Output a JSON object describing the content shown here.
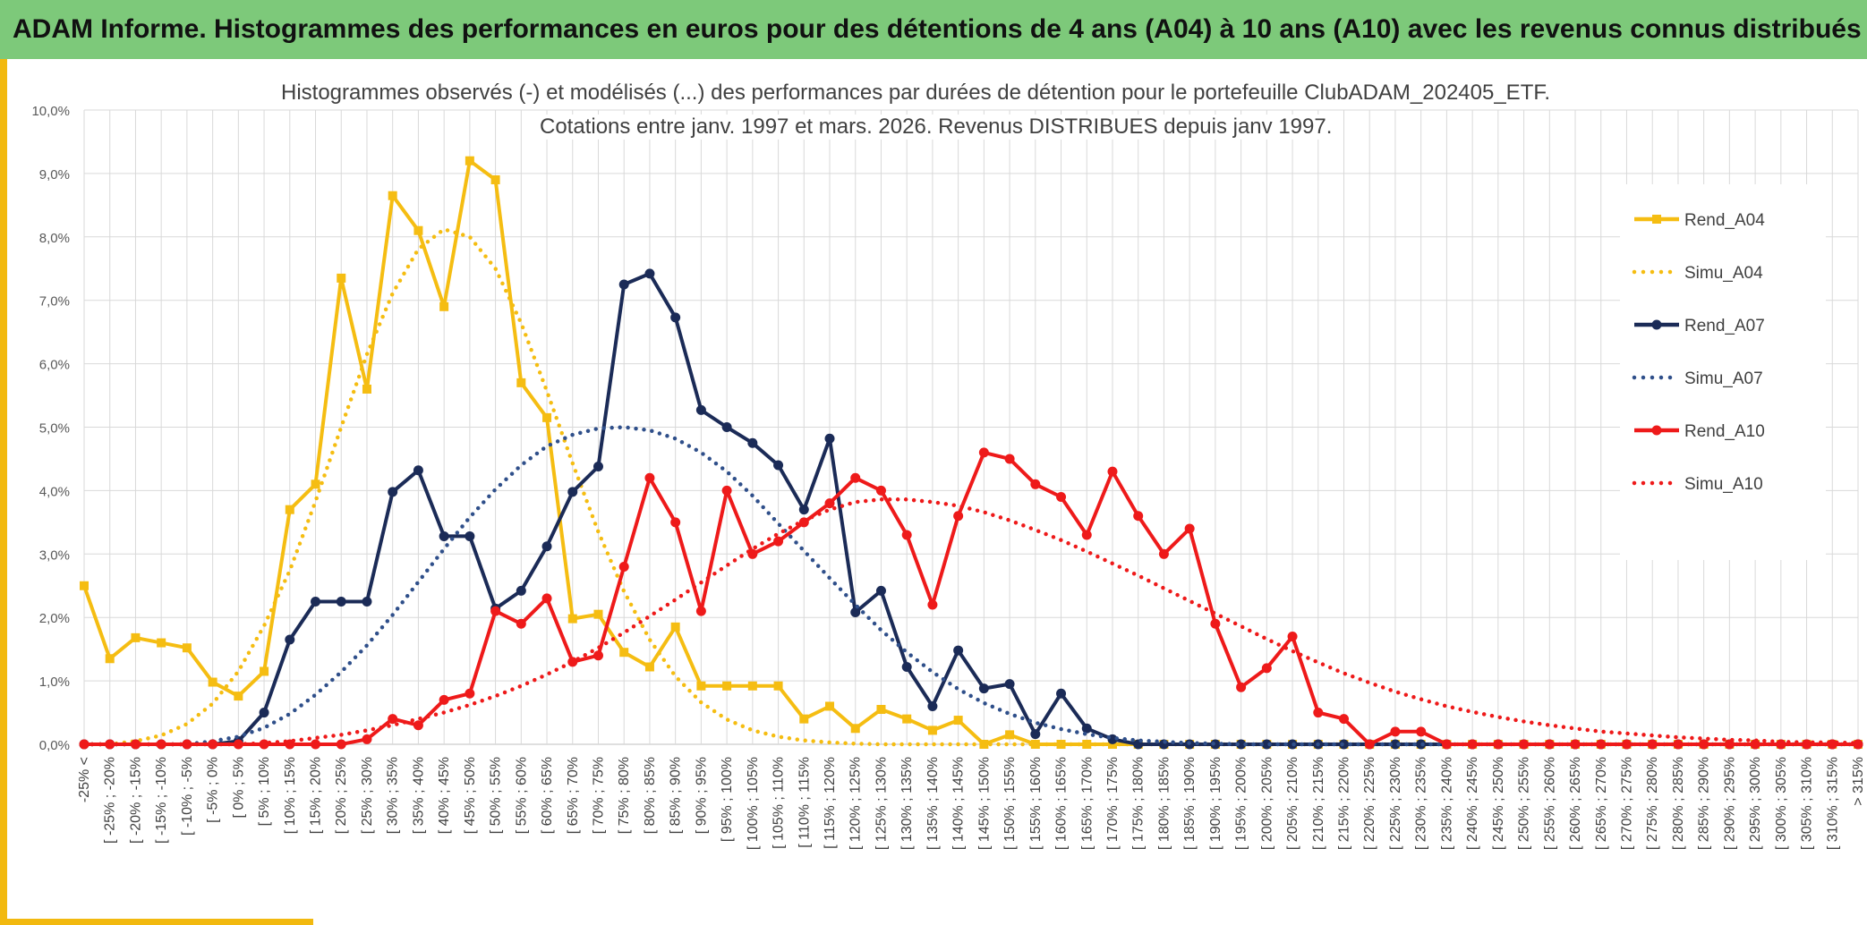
{
  "banner": {
    "title": "ADAM Informe. Histogrammes des performances en euros pour des détentions de 4 ans (A04) à 10 ans (A10) avec les revenus connus distribués"
  },
  "colors": {
    "banner": "#7dc97a",
    "frame": "#f2b90f",
    "a04": "#f5bd12",
    "a07": "#1b2b57",
    "simu07": "#2f4f8a",
    "a10": "#ee1a1a",
    "grid": "#d9d9d9"
  },
  "chart_data": {
    "type": "line",
    "title": "Histogrammes observés (-) et modélisés (...) des performances par durées de détention pour le portefeuille ClubADAM_202405_ETF.",
    "subtitle": "Cotations entre janv. 1997 et mars. 2026. Revenus DISTRIBUES depuis janv 1997.",
    "xlabel": "",
    "ylabel": "",
    "ylim": [
      0,
      10
    ],
    "yticks": [
      "0,0%",
      "1,0%",
      "2,0%",
      "3,0%",
      "4,0%",
      "5,0%",
      "6,0%",
      "7,0%",
      "8,0%",
      "9,0%",
      "10,0%"
    ],
    "grid": true,
    "legend_position": "right",
    "categories": [
      "-25% <",
      "[ -25% ; -20%",
      "[ -20% ; -15%",
      "[ -15% ; -10%",
      "[ -10% ; -5%",
      "[ -5% ; 0%",
      "[ 0% ; 5%",
      "[ 5% ; 10%",
      "[ 10% ; 15%",
      "[ 15% ; 20%",
      "[ 20% ; 25%",
      "[ 25% ; 30%",
      "[ 30% ; 35%",
      "[ 35% ; 40%",
      "[ 40% ; 45%",
      "[ 45% ; 50%",
      "[ 50% ; 55%",
      "[ 55% ; 60%",
      "[ 60% ; 65%",
      "[ 65% ; 70%",
      "[ 70% ; 75%",
      "[ 75% ; 80%",
      "[ 80% ; 85%",
      "[ 85% ; 90%",
      "[ 90% ; 95%",
      "[ 95% ; 100%",
      "[ 100% ; 105%",
      "[ 105% ; 110%",
      "[ 110% ; 115%",
      "[ 115% ; 120%",
      "[ 120% ; 125%",
      "[ 125% ; 130%",
      "[ 130% ; 135%",
      "[ 135% ; 140%",
      "[ 140% ; 145%",
      "[ 145% ; 150%",
      "[ 150% ; 155%",
      "[ 155% ; 160%",
      "[ 160% ; 165%",
      "[ 165% ; 170%",
      "[ 170% ; 175%",
      "[ 175% ; 180%",
      "[ 180% ; 185%",
      "[ 185% ; 190%",
      "[ 190% ; 195%",
      "[ 195% ; 200%",
      "[ 200% ; 205%",
      "[ 205% ; 210%",
      "[ 210% ; 215%",
      "[ 215% ; 220%",
      "[ 220% ; 225%",
      "[ 225% ; 230%",
      "[ 230% ; 235%",
      "[ 235% ; 240%",
      "[ 240% ; 245%",
      "[ 245% ; 250%",
      "[ 250% ; 255%",
      "[ 255% ; 260%",
      "[ 260% ; 265%",
      "[ 265% ; 270%",
      "[ 270% ; 275%",
      "[ 275% ; 280%",
      "[ 280% ; 285%",
      "[ 285% ; 290%",
      "[ 290% ; 295%",
      "[ 295% ; 300%",
      "[ 300% ; 305%",
      "[ 305% ; 310%",
      "[ 310% ; 315%",
      "> 315%"
    ],
    "series": [
      {
        "name": "Rend_A04",
        "style": "solid",
        "marker": "square",
        "color": "#f5bd12",
        "values": [
          2.5,
          1.35,
          1.68,
          1.6,
          1.52,
          0.98,
          0.76,
          1.15,
          3.7,
          4.1,
          7.35,
          5.6,
          8.65,
          8.1,
          6.9,
          9.2,
          8.9,
          5.7,
          5.15,
          1.98,
          2.05,
          1.45,
          1.22,
          1.85,
          0.92,
          0.92,
          0.92,
          0.92,
          0.4,
          0.6,
          0.25,
          0.55,
          0.4,
          0.22,
          0.38,
          0.0,
          0.15,
          0.0,
          0.0,
          0.0,
          0.0,
          0.0,
          0.0,
          0.0,
          0.0,
          0.0,
          0.0,
          0.0,
          0.0,
          0.0,
          0.0,
          0.0,
          0.0,
          0.0,
          0.0,
          0.0,
          0.0,
          0.0,
          0.0,
          0.0,
          0.0,
          0.0,
          0.0,
          0.0,
          0.0,
          0.0,
          0.0,
          0.0,
          0.0,
          0.0
        ]
      },
      {
        "name": "Simu_A04",
        "style": "dotted",
        "marker": "none",
        "color": "#f5bd12",
        "values": [
          0.0,
          0.0,
          0.05,
          0.14,
          0.32,
          0.64,
          1.15,
          1.87,
          2.74,
          3.83,
          5.0,
          6.15,
          7.11,
          7.81,
          8.12,
          8.0,
          7.5,
          6.64,
          5.57,
          4.43,
          3.35,
          2.41,
          1.65,
          1.07,
          0.66,
          0.39,
          0.22,
          0.12,
          0.06,
          0.03,
          0.01,
          0.0,
          0.0,
          0.0,
          0.0,
          0.0,
          0.0,
          0.0,
          0.0,
          0.0,
          0.0,
          0.0,
          0.0,
          0.0,
          0.0,
          0.0,
          0.0,
          0.0,
          0.0,
          0.0,
          0.0,
          0.0,
          0.0,
          0.0,
          0.0,
          0.0,
          0.0,
          0.0,
          0.0,
          0.0,
          0.0,
          0.0,
          0.0,
          0.0,
          0.0,
          0.0,
          0.0,
          0.0,
          0.0,
          0.0
        ]
      },
      {
        "name": "Rend_A07",
        "style": "solid",
        "marker": "circle",
        "color": "#1b2b57",
        "values": [
          0.0,
          0.0,
          0.0,
          0.0,
          0.0,
          0.0,
          0.05,
          0.5,
          1.65,
          2.25,
          2.25,
          2.25,
          3.98,
          4.32,
          3.28,
          3.28,
          2.14,
          2.42,
          3.12,
          3.98,
          4.38,
          7.25,
          7.42,
          6.73,
          5.27,
          5.0,
          4.75,
          4.4,
          3.7,
          4.82,
          2.08,
          2.42,
          1.22,
          0.6,
          1.48,
          0.88,
          0.95,
          0.16,
          0.8,
          0.25,
          0.08,
          0.0,
          0.0,
          0.0,
          0.0,
          0.0,
          0.0,
          0.0,
          0.0,
          0.0,
          0.0,
          0.0,
          0.0,
          0.0,
          0.0,
          0.0,
          0.0,
          0.0,
          0.0,
          0.0,
          0.0,
          0.0,
          0.0,
          0.0,
          0.0,
          0.0,
          0.0,
          0.0,
          0.0,
          0.0
        ]
      },
      {
        "name": "Simu_A07",
        "style": "dotted",
        "marker": "none",
        "color": "#2f4f8a",
        "values": [
          0.0,
          0.0,
          0.0,
          0.0,
          0.0,
          0.05,
          0.12,
          0.26,
          0.48,
          0.78,
          1.14,
          1.56,
          2.04,
          2.56,
          3.08,
          3.58,
          4.02,
          4.4,
          4.7,
          4.88,
          4.98,
          5.0,
          4.95,
          4.82,
          4.6,
          4.3,
          3.92,
          3.48,
          3.05,
          2.62,
          2.2,
          1.8,
          1.45,
          1.14,
          0.87,
          0.65,
          0.48,
          0.34,
          0.24,
          0.16,
          0.1,
          0.06,
          0.04,
          0.02,
          0.01,
          0.0,
          0.0,
          0.0,
          0.0,
          0.0,
          0.0,
          0.0,
          0.0,
          0.0,
          0.0,
          0.0,
          0.0,
          0.0,
          0.0,
          0.0,
          0.0,
          0.0,
          0.0,
          0.0,
          0.0,
          0.0,
          0.0,
          0.0,
          0.0,
          0.0
        ]
      },
      {
        "name": "Rend_A10",
        "style": "solid",
        "marker": "circle",
        "color": "#ee1a1a",
        "values": [
          0.0,
          0.0,
          0.0,
          0.0,
          0.0,
          0.0,
          0.0,
          0.0,
          0.0,
          0.0,
          0.0,
          0.08,
          0.4,
          0.3,
          0.7,
          0.8,
          2.1,
          1.9,
          2.3,
          1.3,
          1.4,
          2.8,
          4.2,
          3.5,
          2.1,
          4.0,
          3.0,
          3.2,
          3.5,
          3.8,
          4.2,
          4.0,
          3.3,
          2.2,
          3.6,
          4.6,
          4.5,
          4.1,
          3.9,
          3.3,
          4.3,
          3.6,
          3.0,
          3.4,
          1.9,
          0.9,
          1.2,
          1.7,
          0.5,
          0.4,
          0.0,
          0.2,
          0.2,
          0.0,
          0.0,
          0.0,
          0.0,
          0.0,
          0.0,
          0.0,
          0.0,
          0.0,
          0.0,
          0.0,
          0.0,
          0.0,
          0.0,
          0.0,
          0.0,
          0.0
        ]
      },
      {
        "name": "Simu_A10",
        "style": "dotted",
        "marker": "none",
        "color": "#ee1a1a",
        "values": [
          0.0,
          0.0,
          0.0,
          0.0,
          0.0,
          0.0,
          0.0,
          0.02,
          0.05,
          0.1,
          0.15,
          0.22,
          0.3,
          0.4,
          0.5,
          0.62,
          0.76,
          0.92,
          1.1,
          1.3,
          1.52,
          1.76,
          2.02,
          2.28,
          2.55,
          2.82,
          3.08,
          3.32,
          3.53,
          3.7,
          3.82,
          3.86,
          3.86,
          3.82,
          3.76,
          3.66,
          3.53,
          3.38,
          3.22,
          3.04,
          2.85,
          2.66,
          2.46,
          2.26,
          2.06,
          1.86,
          1.66,
          1.47,
          1.29,
          1.12,
          0.97,
          0.83,
          0.71,
          0.6,
          0.51,
          0.43,
          0.36,
          0.3,
          0.25,
          0.2,
          0.17,
          0.14,
          0.11,
          0.09,
          0.07,
          0.06,
          0.04,
          0.03,
          0.03,
          0.02
        ]
      }
    ]
  }
}
